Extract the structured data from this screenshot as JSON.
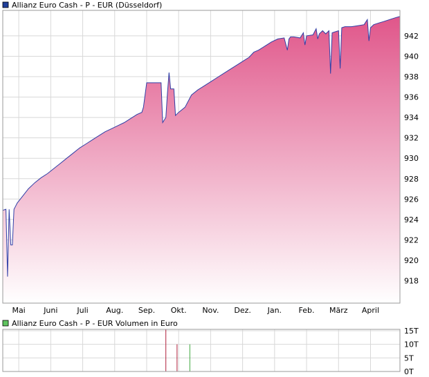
{
  "chart_data": [
    {
      "type": "area",
      "legend": "Allianz Euro Cash - P - EUR (Düsseldorf)",
      "legend_color": "#1f3f9a",
      "series_color": "#2f3ea6",
      "fill_top_color": "#e0568a",
      "fill_bottom_color": "#ffffff",
      "x_tick_labels": [
        "Mai",
        "Juni",
        "Juli",
        "Aug.",
        "Sep.",
        "Okt.",
        "Nov.",
        "Dez.",
        "Jan.",
        "Feb.",
        "März",
        "April"
      ],
      "y_tick_labels": [
        "918",
        "920",
        "922",
        "924",
        "926",
        "928",
        "930",
        "932",
        "934",
        "936",
        "938",
        "940",
        "942"
      ],
      "y_ticks": [
        918,
        920,
        922,
        924,
        926,
        928,
        930,
        932,
        934,
        936,
        938,
        940,
        942
      ],
      "ylim": [
        915.8,
        944.5
      ],
      "xlim": [
        0,
        12.42
      ],
      "grid": true,
      "x": [
        0.0,
        0.1,
        0.15,
        0.2,
        0.25,
        0.3,
        0.35,
        0.4,
        0.45,
        0.55,
        0.65,
        0.8,
        1.0,
        1.2,
        1.4,
        1.6,
        1.8,
        2.0,
        2.2,
        2.4,
        2.6,
        2.8,
        3.0,
        3.2,
        3.4,
        3.6,
        3.8,
        4.0,
        4.2,
        4.35,
        4.4,
        4.5,
        4.6,
        4.75,
        4.85,
        4.95,
        5.0,
        5.1,
        5.15,
        5.2,
        5.25,
        5.35,
        5.4,
        5.5,
        5.7,
        5.9,
        6.1,
        6.3,
        6.5,
        6.7,
        6.9,
        7.1,
        7.3,
        7.5,
        7.7,
        7.85,
        8.0,
        8.2,
        8.4,
        8.6,
        8.8,
        8.9,
        8.95,
        9.0,
        9.1,
        9.3,
        9.4,
        9.45,
        9.5,
        9.7,
        9.8,
        9.85,
        9.9,
        10.0,
        10.1,
        10.2,
        10.25,
        10.3,
        10.4,
        10.5,
        10.55,
        10.6,
        10.7,
        10.9,
        11.1,
        11.3,
        11.4,
        11.45,
        11.5,
        11.6,
        11.7,
        11.8,
        11.9,
        12.0,
        12.1,
        12.2,
        12.3,
        12.42
      ],
      "values": [
        924.9,
        925.0,
        918.4,
        925.0,
        921.5,
        921.5,
        925.0,
        925.3,
        925.6,
        926.0,
        926.4,
        927.0,
        927.6,
        928.1,
        928.5,
        929.0,
        929.5,
        930.0,
        930.5,
        931.0,
        931.4,
        931.8,
        932.2,
        932.6,
        932.9,
        933.2,
        933.5,
        933.9,
        934.3,
        934.5,
        935.0,
        937.4,
        937.4,
        937.4,
        937.4,
        937.4,
        933.5,
        934.0,
        936.4,
        938.4,
        936.8,
        936.8,
        934.2,
        934.5,
        935.0,
        936.2,
        936.7,
        937.1,
        937.5,
        937.9,
        938.3,
        938.7,
        939.1,
        939.5,
        939.9,
        940.4,
        940.6,
        941.0,
        941.4,
        941.7,
        941.8,
        940.6,
        941.7,
        941.9,
        941.9,
        941.8,
        942.3,
        941.1,
        942.0,
        942.1,
        942.7,
        941.7,
        942.2,
        942.5,
        942.2,
        942.5,
        938.3,
        942.3,
        942.4,
        942.5,
        938.8,
        942.8,
        942.9,
        942.9,
        943.0,
        943.1,
        943.6,
        941.5,
        942.8,
        943.1,
        943.2,
        943.3,
        943.4,
        943.5,
        943.6,
        943.7,
        943.8,
        943.9
      ]
    },
    {
      "type": "bar",
      "legend": "Allianz Euro Cash - P - EUR Volumen in Euro",
      "legend_color": "#5fc45f",
      "y_tick_labels": [
        "0T",
        "5T",
        "10T",
        "15T"
      ],
      "y_ticks": [
        0,
        5,
        10,
        15
      ],
      "ylim": [
        0,
        15.5
      ],
      "grid": true,
      "bars": [
        {
          "x": 5.1,
          "value": 15.5,
          "color": "#b01f3a"
        },
        {
          "x": 5.45,
          "value": 10.0,
          "color": "#b01f3a"
        },
        {
          "x": 5.85,
          "value": 10.0,
          "color": "#3fa83f"
        }
      ]
    }
  ]
}
